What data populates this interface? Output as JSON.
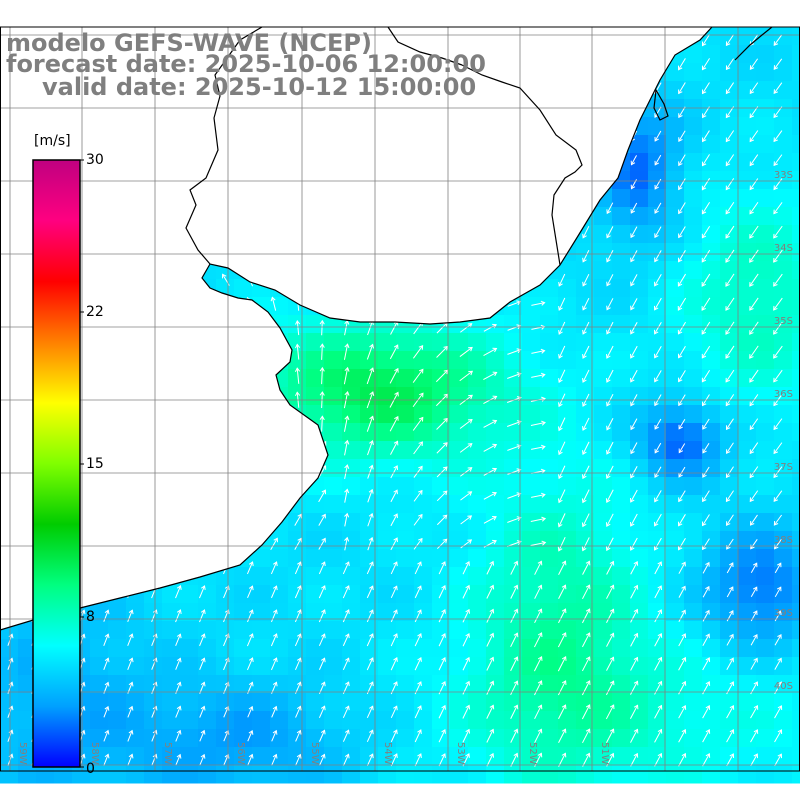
{
  "title": {
    "model": "modelo GEFS-WAVE (NCEP)",
    "forecast": "forecast date: 2025-10-06 12:00:00",
    "valid": "valid date: 2025-10-12 15:00:00"
  },
  "colorbar": {
    "unit": "[m/s]",
    "ticks": [
      "30",
      "22",
      "15",
      "8",
      "0"
    ],
    "min": 0,
    "max": 30,
    "stops": [
      "#0000ff",
      "#00a0ff",
      "#00ffff",
      "#00ff80",
      "#00cc00",
      "#80ff00",
      "#ffff00",
      "#ff8000",
      "#ff0000",
      "#ff0080",
      "#c00080"
    ]
  },
  "map": {
    "lat_labels": [
      "33S",
      "34S",
      "35S",
      "36S",
      "37S",
      "38S",
      "39S",
      "40S"
    ],
    "lon_labels": [
      "59W",
      "58W",
      "57W",
      "56W",
      "55W",
      "54W",
      "53W",
      "52W",
      "51W"
    ],
    "colors": {
      "land": "#ffffff",
      "coast": "#000000",
      "grid": "#808080",
      "arrow": "#ffffff",
      "title": "#7f7f7f"
    }
  }
}
